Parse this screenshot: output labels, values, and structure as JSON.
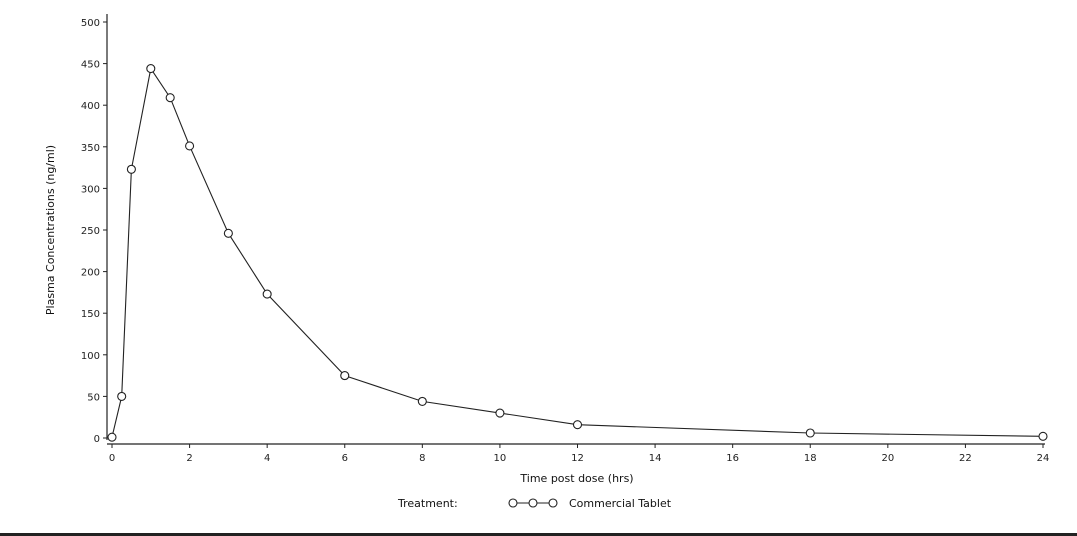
{
  "chart_data": {
    "type": "line",
    "xlabel": "Time post dose (hrs)",
    "ylabel": "Plasma Concentrations (ng/ml)",
    "xlim": [
      0,
      24
    ],
    "ylim": [
      0,
      500
    ],
    "xticks": [
      0,
      2,
      4,
      6,
      8,
      10,
      12,
      14,
      16,
      18,
      20,
      22,
      24
    ],
    "yticks": [
      0,
      50,
      100,
      150,
      200,
      250,
      300,
      350,
      400,
      450,
      500
    ],
    "grid": false,
    "legend": {
      "title": "Treatment:",
      "placement": "bottom-center"
    },
    "series": [
      {
        "name": "Commercial Tablet",
        "marker": "open-circle",
        "color": "#222222",
        "x": [
          0,
          0.25,
          0.5,
          1,
          1.5,
          2,
          3,
          4,
          6,
          8,
          10,
          12,
          18,
          24
        ],
        "y": [
          1,
          50,
          323,
          444,
          409,
          351,
          246,
          173,
          75,
          44,
          30,
          16,
          6,
          2
        ]
      }
    ]
  }
}
